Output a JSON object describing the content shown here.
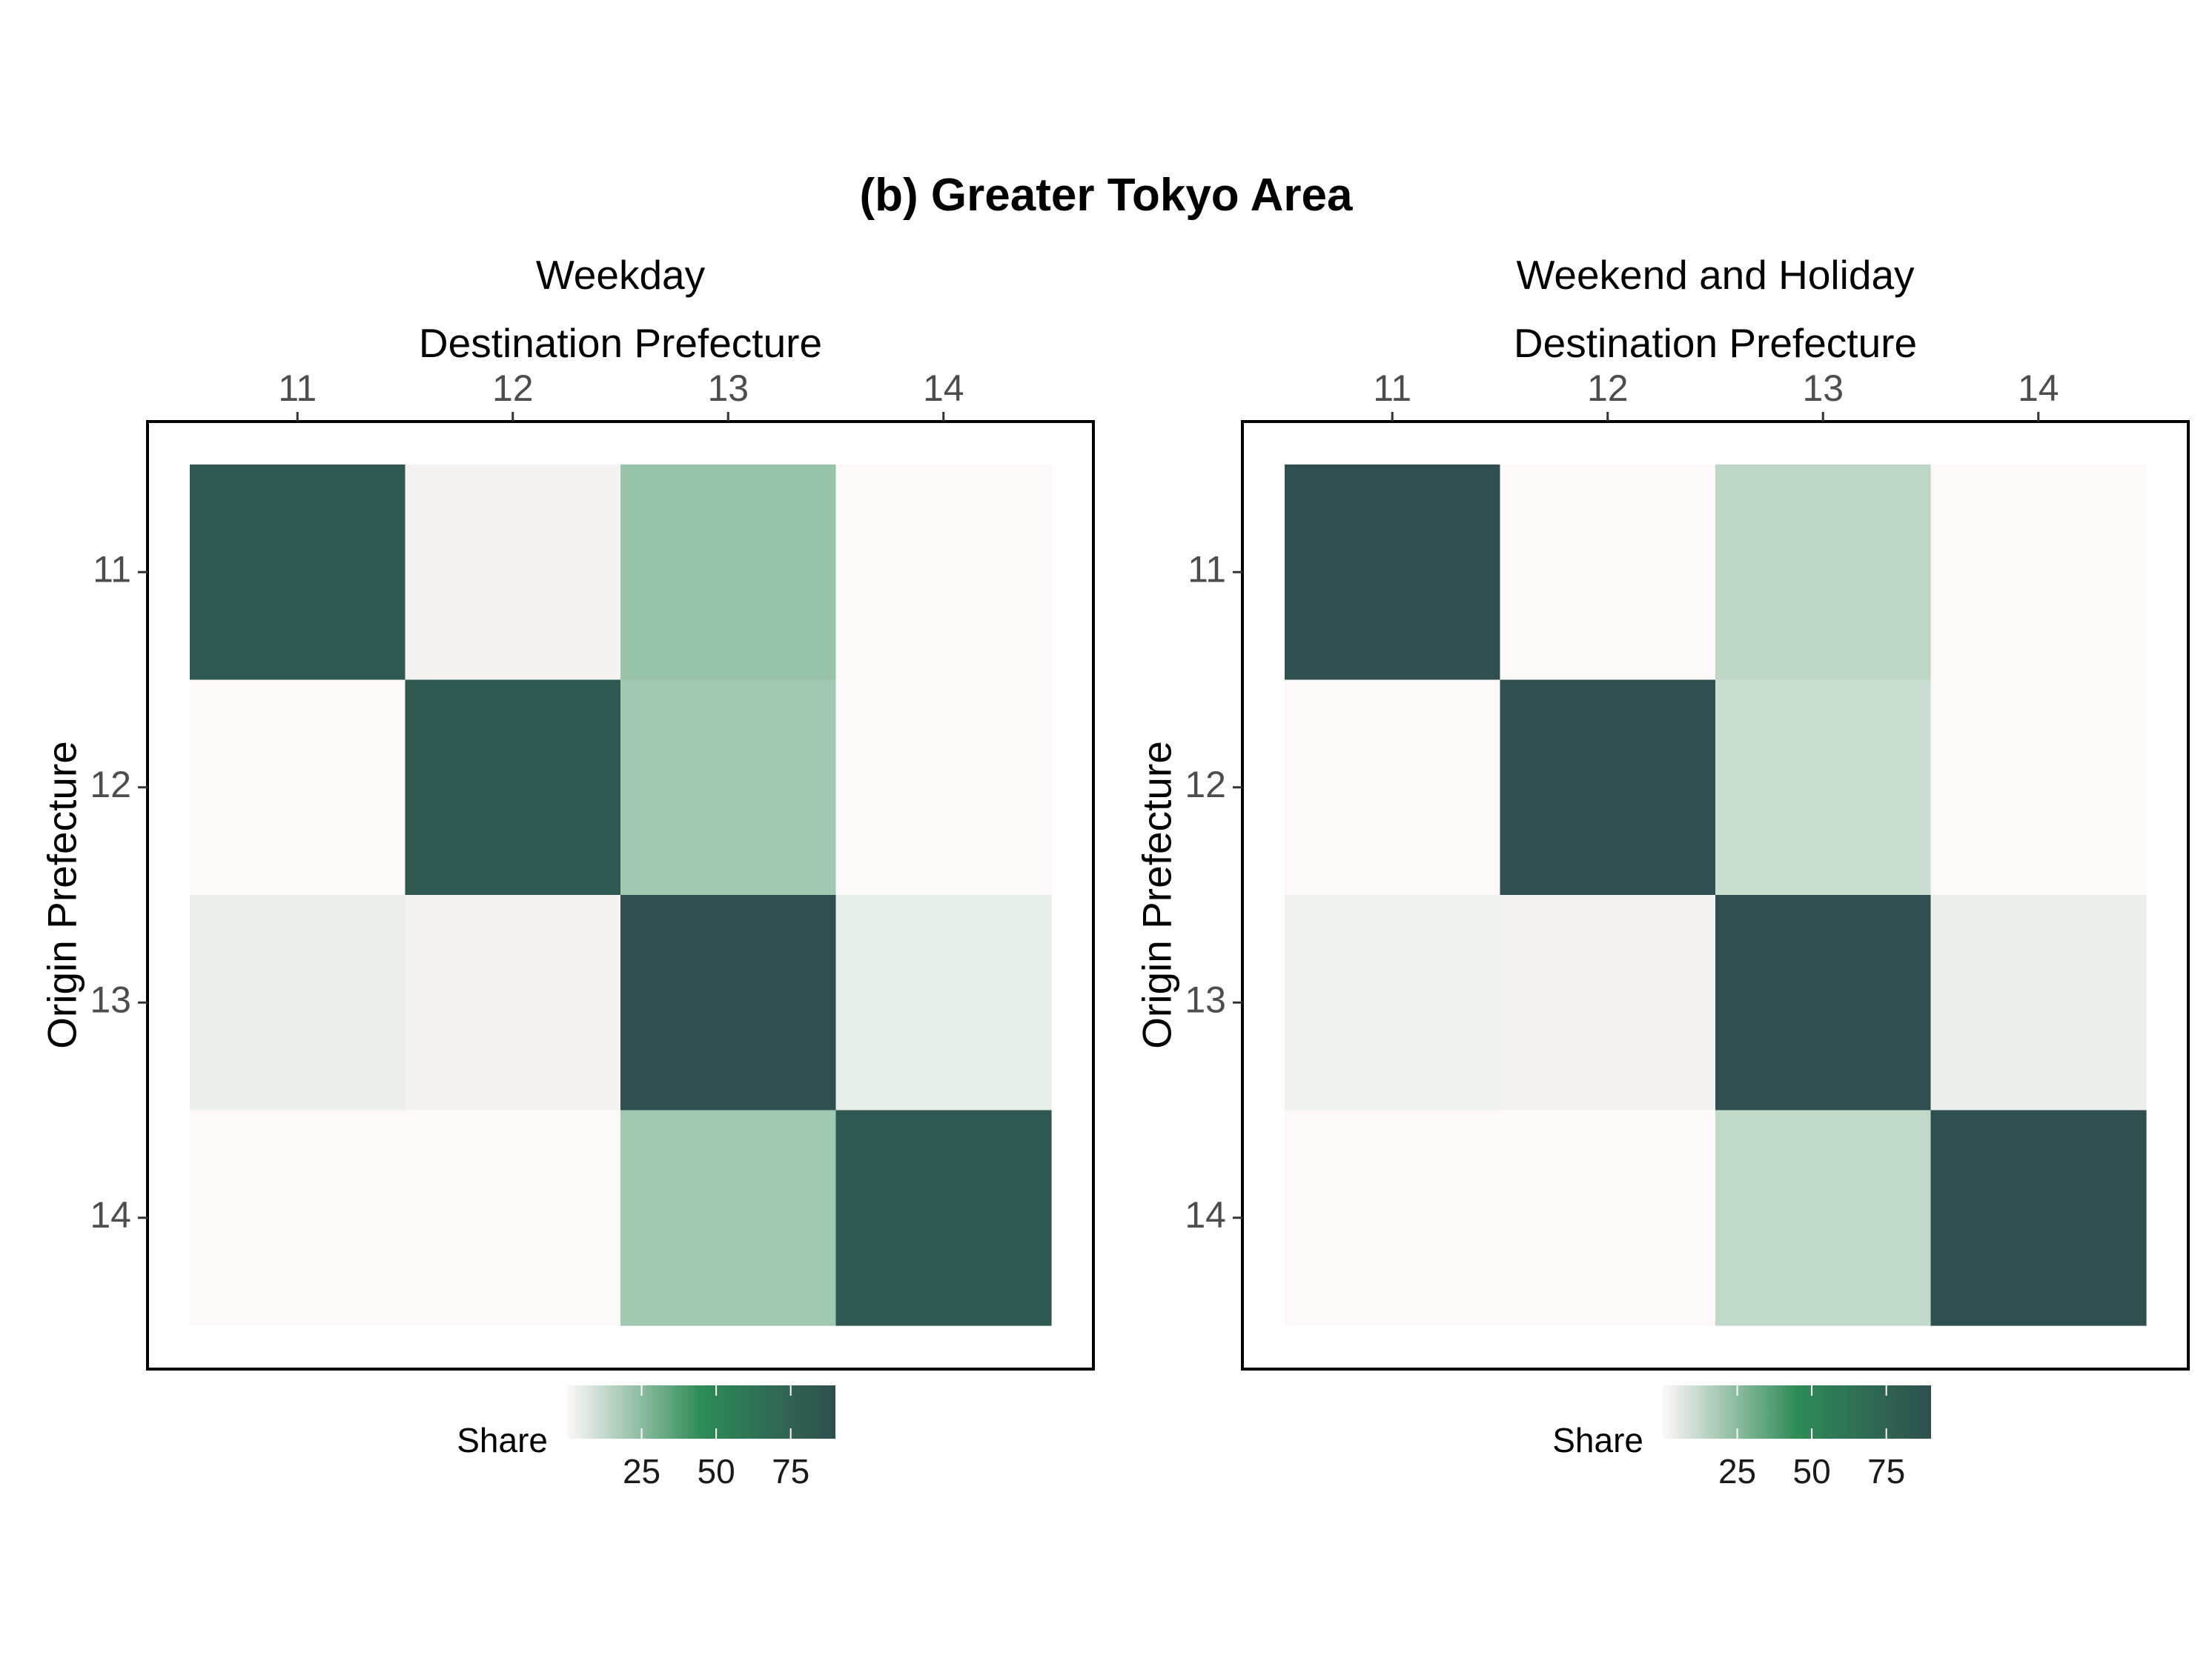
{
  "title": "(b) Greater Tokyo Area",
  "chart_data": [
    {
      "type": "heatmap",
      "panel_title": "Weekday",
      "xlabel": "Destination Prefecture",
      "ylabel": "Origin Prefecture",
      "x": [
        "11",
        "12",
        "13",
        "14"
      ],
      "y": [
        "11",
        "12",
        "13",
        "14"
      ],
      "values": [
        [
          83,
          2,
          22,
          0
        ],
        [
          0,
          83,
          20,
          0
        ],
        [
          4,
          2,
          90,
          5
        ],
        [
          0,
          0,
          20,
          83
        ]
      ],
      "legend": {
        "title": "Share",
        "ticks": [
          25,
          50,
          75
        ],
        "range": [
          0,
          90
        ],
        "position": "bottom"
      },
      "colors": {
        "low": "#fdf8f8",
        "mid": "#2e8b57",
        "high": "#2f4f4f"
      }
    },
    {
      "type": "heatmap",
      "panel_title": "Weekend and Holiday",
      "xlabel": "Destination Prefecture",
      "ylabel": "Origin Prefecture",
      "x": [
        "11",
        "12",
        "13",
        "14"
      ],
      "y": [
        "11",
        "12",
        "13",
        "14"
      ],
      "values": [
        [
          90,
          0,
          14,
          0
        ],
        [
          0,
          90,
          11,
          0
        ],
        [
          3,
          2,
          90,
          4
        ],
        [
          0,
          0,
          13,
          90
        ]
      ],
      "legend": {
        "title": "Share",
        "ticks": [
          25,
          50,
          75
        ],
        "range": [
          0,
          90
        ],
        "position": "bottom"
      },
      "colors": {
        "low": "#fdf8f8",
        "mid": "#2e8b57",
        "high": "#2f4f4f"
      }
    }
  ]
}
